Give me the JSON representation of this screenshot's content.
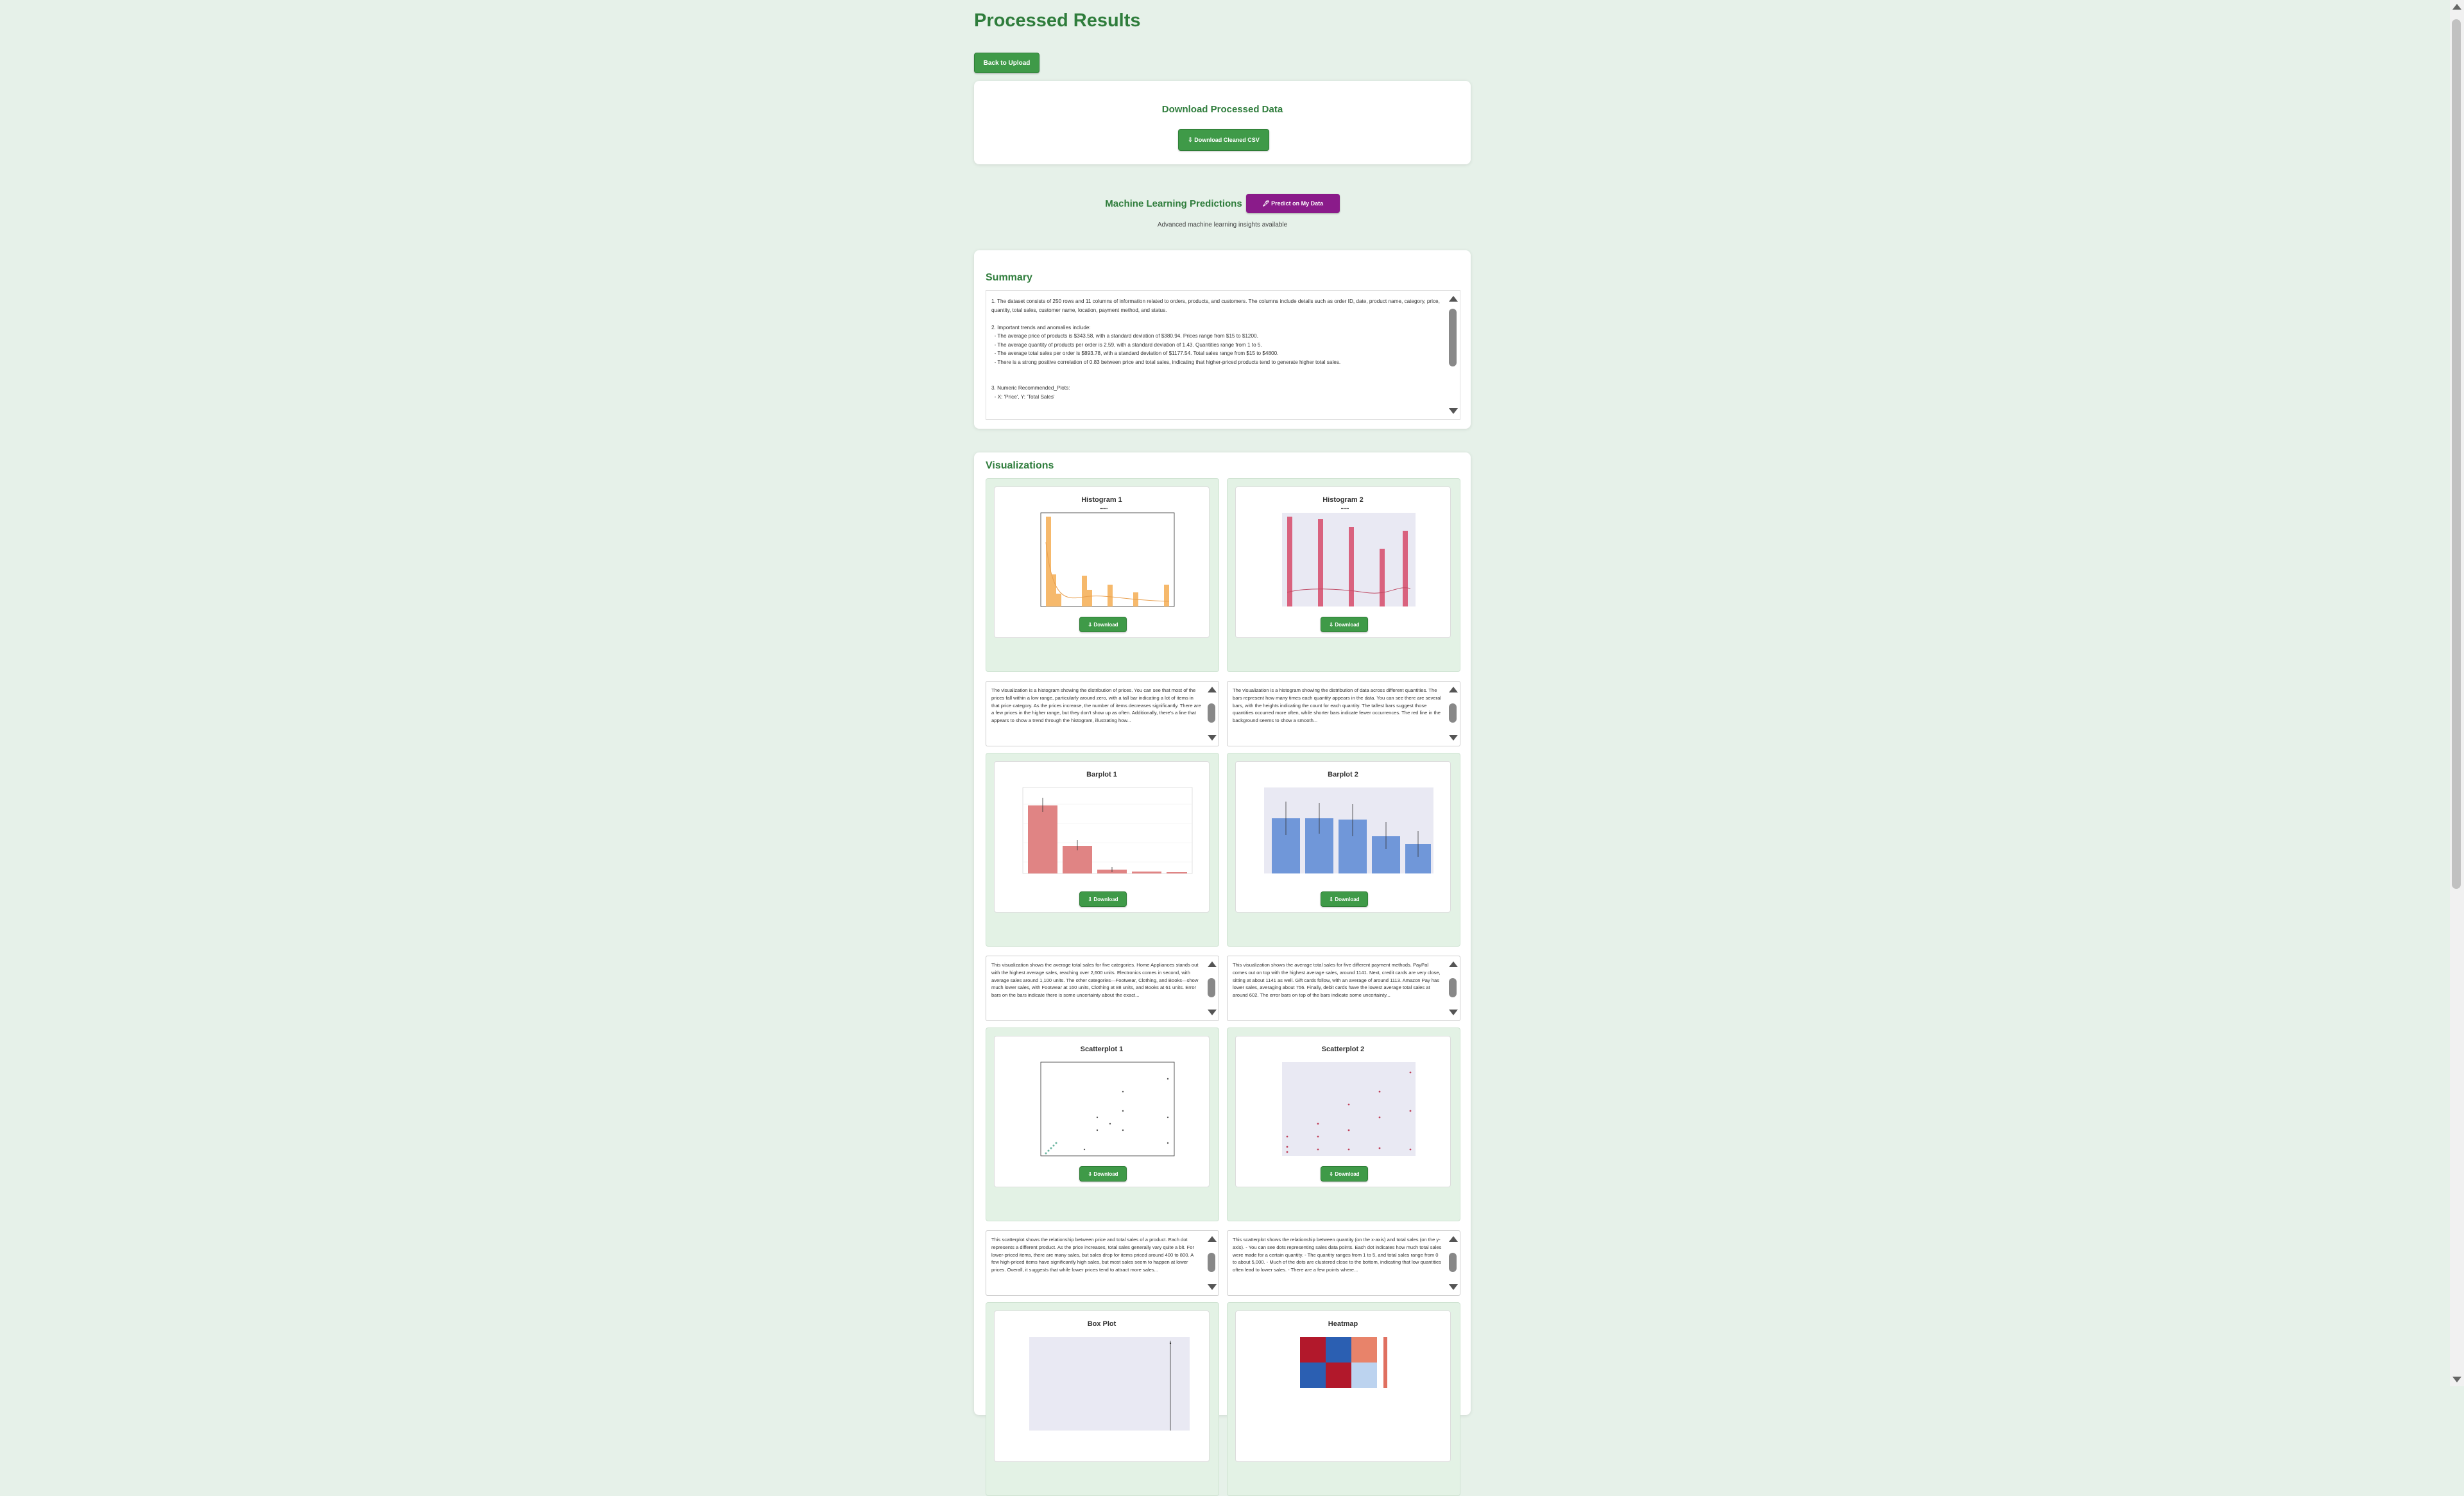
{
  "page": {
    "title": "Processed Results",
    "back_label": "Back to Upload"
  },
  "download": {
    "title": "Download Processed Data",
    "button_label": "⇩ Download Cleaned CSV"
  },
  "ml": {
    "title": "Machine Learning Predictions",
    "button_label": "🖋 Predict on My Data",
    "subtitle": "Advanced machine learning insights available"
  },
  "summary": {
    "title": "Summary",
    "text": "1. The dataset consists of 250 rows and 11 columns of information related to orders, products, and customers. The columns include details such as order ID, date, product name, category, price, quantity, total sales, customer name, location, payment method, and status.\n\n2. Important trends and anomalies include:\n  - The average price of products is $343.58, with a standard deviation of $380.94. Prices range from $15 to $1200.\n  - The average quantity of products per order is 2.59, with a standard deviation of 1.43. Quantities range from 1 to 5.\n  - The average total sales per order is $893.78, with a standard deviation of $1177.54. Total sales range from $15 to $4800.\n  - There is a strong positive correlation of 0.83 between price and total sales, indicating that higher-priced products tend to generate higher total sales.\n\n\n3. Numeric Recommended_Plots:\n  - X: 'Price', Y: 'Total Sales'"
  },
  "viz": {
    "title": "Visualizations",
    "download_label": "⇩ Download",
    "tiles": [
      {
        "title": "Histogram 1",
        "desc": "The visualization is a histogram showing the distribution of prices. You can see that most of the prices fall within a low range, particularly around zero, with a tall bar indicating a lot of items in that price category. As the prices increase, the number of items decreases significantly. There are a few prices in the higher range, but they don't show up as often. Additionally, there's a line that appears to show a trend through the histogram, illustrating how..."
      },
      {
        "title": "Histogram 2",
        "desc": "The visualization is a histogram showing the distribution of data across different quantities. The bars represent how many times each quantity appears in the data. You can see there are several bars, with the heights indicating the count for each quantity. The tallest bars suggest those quantities occurred more often, while shorter bars indicate fewer occurrences. The red line in the background seems to show a smooth..."
      },
      {
        "title": "Barplot 1",
        "desc": "This visualization shows the average total sales for five categories. Home Appliances stands out with the highest average sales, reaching over 2,600 units. Electronics comes in second, with average sales around 1,100 units. The other categories—Footwear, Clothing, and Books—show much lower sales, with Footwear at 160 units, Clothing at 88 units, and Books at 61 units. Error bars on the bars indicate there is some uncertainty about the exact..."
      },
      {
        "title": "Barplot 2",
        "desc": "This visualization shows the average total sales for five different payment methods. PayPal comes out on top with the highest average sales, around 1141. Next, credit cards are very close, sitting at about 1141 as well. Gift cards follow, with an average of around 1113. Amazon Pay has lower sales, averaging about 756. Finally, debit cards have the lowest average total sales at around 602. The error bars on top of the bars indicate some uncertainty..."
      },
      {
        "title": "Scatterplot 1",
        "desc": "This scatterplot shows the relationship between price and total sales of a product. Each dot represents a different product. As the price increases, total sales generally vary quite a bit. For lower-priced items, there are many sales, but sales drop for items priced around 400 to 800. A few high-priced items have significantly high sales, but most sales seem to happen at lower prices. Overall, it suggests that while lower prices tend to attract more sales..."
      },
      {
        "title": "Scatterplot 2",
        "desc": "This scatterplot shows the relationship between quantity (on the x-axis) and total sales (on the y-axis). - You can see dots representing sales data points. Each dot indicates how much total sales were made for a certain quantity. - The quantity ranges from 1 to 5, and total sales range from 0 to about 5,000. - Much of the dots are clustered close to the bottom, indicating that low quantities often lead to lower sales. - There are a few points where..."
      },
      {
        "title": "Box Plot"
      },
      {
        "title": "Heatmap"
      }
    ]
  },
  "colors": {
    "brand_green": "#2f7d3c",
    "button_green": "#3f9a48",
    "ml_purple": "#8a1b8a",
    "hist1": "#f6b96c",
    "hist2": "#d9627e",
    "bar1": "#e08484",
    "bar2": "#7097d9"
  }
}
